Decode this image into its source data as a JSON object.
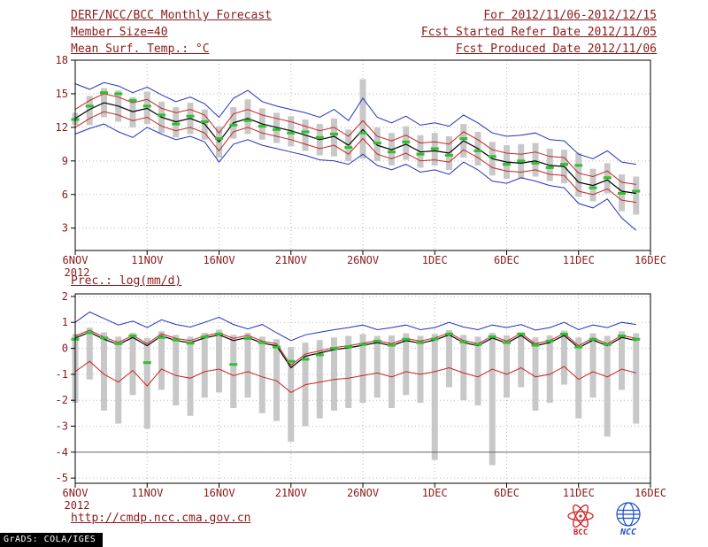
{
  "header": {
    "title": "DERF/NCC/BCC Monthly Forecast",
    "member_size": "Member Size=40",
    "panel1_label": "Mean Surf. Temp.: °C",
    "for_range": "For 2012/11/06-2012/12/15",
    "refer_date": "Fcst Started Refer Date 2012/11/05",
    "produced_date": "Fcst Produced Date 2012/11/06"
  },
  "panel2_label": "Prec.: log(mm/d)",
  "footer": {
    "url": "http://cmdp.ncc.cma.gov.cn",
    "grads_credit": "GrADS: COLA/IGES",
    "logo_bcc": "BCC",
    "logo_ncc": "NCC"
  },
  "colors": {
    "text": "#8b1a1a",
    "axis": "#000000",
    "grid": "#b8b8b8",
    "envelope": "#2233bb",
    "spread": "#cc2222",
    "mean": "#000000",
    "median_marker": "#2fbf2f",
    "bar": "#c8c8c8",
    "bcc_red": "#cc2222",
    "ncc_blue": "#1a4fd0"
  },
  "chart_data": [
    {
      "type": "line",
      "title": "Mean Surf. Temp.: °C",
      "ylim": [
        1,
        18
      ],
      "yticks": [
        3,
        6,
        9,
        12,
        15,
        18
      ],
      "x_range": [
        0,
        40
      ],
      "x_tick_positions": [
        0,
        5,
        10,
        15,
        20,
        25,
        30,
        35,
        40
      ],
      "x_tick_labels": [
        "6NOV",
        "11NOV",
        "16NOV",
        "21NOV",
        "26NOV",
        "1DEC",
        "6DEC",
        "11DEC",
        "16DEC"
      ],
      "x_year_label": "2012",
      "series": [
        {
          "name": "ensemble-max",
          "color": "#2233bb",
          "width": 1,
          "values": [
            15.9,
            15.4,
            16.0,
            15.7,
            15.1,
            15.6,
            14.9,
            14.3,
            14.7,
            14.1,
            12.9,
            14.6,
            15.3,
            14.3,
            13.9,
            13.6,
            13.3,
            12.9,
            13.6,
            12.6,
            14.6,
            12.9,
            12.4,
            13.0,
            12.2,
            12.4,
            12.1,
            13.1,
            12.4,
            11.5,
            11.2,
            11.3,
            11.5,
            10.9,
            10.8,
            9.6,
            9.2,
            9.9,
            8.9,
            8.7
          ]
        },
        {
          "name": "mean-plus-spread",
          "color": "#cc2222",
          "width": 1,
          "values": [
            13.6,
            14.4,
            15.0,
            14.7,
            14.2,
            14.5,
            13.7,
            13.3,
            13.6,
            13.1,
            11.5,
            13.2,
            13.6,
            13.1,
            12.8,
            12.5,
            12.1,
            11.7,
            12.0,
            11.2,
            12.6,
            11.2,
            10.8,
            11.3,
            10.6,
            10.7,
            10.5,
            11.6,
            10.9,
            10.0,
            9.7,
            9.6,
            9.8,
            9.4,
            9.3,
            7.9,
            7.6,
            8.1,
            7.1,
            6.9
          ]
        },
        {
          "name": "ensemble-mean",
          "color": "#000000",
          "width": 1.2,
          "values": [
            12.8,
            13.6,
            14.2,
            13.9,
            13.4,
            13.7,
            12.9,
            12.5,
            12.8,
            12.3,
            10.7,
            12.4,
            12.8,
            12.3,
            12.0,
            11.7,
            11.3,
            10.9,
            11.2,
            10.4,
            11.8,
            10.4,
            10.0,
            10.5,
            9.8,
            9.9,
            9.7,
            10.8,
            10.1,
            9.2,
            8.9,
            8.8,
            9.0,
            8.6,
            8.5,
            7.1,
            6.8,
            7.3,
            6.3,
            6.1
          ]
        },
        {
          "name": "mean-minus-spread",
          "color": "#cc2222",
          "width": 1,
          "values": [
            12.0,
            12.8,
            13.4,
            13.1,
            12.6,
            12.9,
            12.1,
            11.7,
            12.0,
            11.5,
            9.9,
            11.6,
            12.0,
            11.5,
            11.2,
            10.9,
            10.5,
            10.1,
            10.4,
            9.6,
            11.0,
            9.6,
            9.2,
            9.7,
            9.0,
            9.1,
            8.9,
            10.0,
            9.3,
            8.4,
            8.1,
            8.0,
            8.2,
            7.8,
            7.7,
            6.3,
            6.0,
            6.5,
            5.5,
            5.3
          ]
        },
        {
          "name": "ensemble-min",
          "color": "#2233bb",
          "width": 1,
          "values": [
            11.4,
            11.9,
            12.3,
            11.6,
            11.1,
            12.0,
            11.4,
            10.9,
            11.2,
            10.7,
            8.9,
            10.5,
            10.9,
            10.4,
            10.1,
            9.8,
            9.5,
            9.1,
            9.0,
            8.7,
            9.6,
            8.6,
            8.2,
            8.7,
            8.0,
            8.2,
            7.8,
            8.9,
            8.2,
            7.2,
            7.0,
            7.5,
            7.2,
            6.8,
            6.6,
            5.2,
            4.8,
            5.6,
            3.9,
            2.8
          ]
        }
      ],
      "range_bars": {
        "name": "member-range",
        "color": "#c8c8c8",
        "high": [
          13.3,
          14.8,
          15.5,
          15.3,
          14.7,
          15.2,
          14.3,
          13.8,
          14.2,
          13.6,
          12.1,
          13.8,
          14.5,
          13.7,
          13.3,
          13.0,
          12.7,
          12.3,
          12.8,
          11.8,
          16.3,
          12.0,
          11.5,
          12.1,
          11.3,
          11.5,
          11.2,
          12.3,
          11.6,
          10.7,
          10.4,
          10.5,
          10.6,
          10.1,
          10.0,
          9.7,
          8.3,
          8.8,
          7.8,
          7.6
        ],
        "low": [
          12.2,
          12.2,
          12.9,
          12.5,
          12.0,
          12.3,
          11.5,
          11.1,
          11.4,
          10.9,
          9.3,
          11.0,
          11.4,
          10.9,
          10.6,
          10.3,
          9.9,
          9.5,
          9.4,
          9.0,
          9.2,
          9.0,
          8.6,
          9.1,
          8.4,
          8.6,
          8.2,
          9.3,
          8.6,
          7.7,
          7.4,
          7.4,
          7.6,
          7.2,
          7.0,
          5.8,
          5.4,
          6.1,
          4.5,
          4.2
        ]
      },
      "markers": {
        "name": "ensemble-median",
        "color": "#2fbf2f",
        "values": [
          12.7,
          13.9,
          15.1,
          15.0,
          14.4,
          13.9,
          13.1,
          12.3,
          13.0,
          12.5,
          11.0,
          12.2,
          12.6,
          12.1,
          11.8,
          11.5,
          11.6,
          11.1,
          11.4,
          10.2,
          11.5,
          10.6,
          9.8,
          10.7,
          9.6,
          10.1,
          9.5,
          11.0,
          9.9,
          9.4,
          8.7,
          9.0,
          8.8,
          8.4,
          8.7,
          8.6,
          6.6,
          7.5,
          6.1,
          6.3
        ]
      }
    },
    {
      "type": "line",
      "title": "Prec.: log(mm/d)",
      "ylim": [
        -5.2,
        2.1
      ],
      "yticks": [
        -5,
        -4,
        -3,
        -2,
        -1,
        0,
        1,
        2
      ],
      "x_range": [
        0,
        40
      ],
      "x_tick_positions": [
        0,
        5,
        10,
        15,
        20,
        25,
        30,
        35,
        40
      ],
      "x_tick_labels": [
        "6NOV",
        "11NOV",
        "16NOV",
        "21NOV",
        "26NOV",
        "1DEC",
        "6DEC",
        "11DEC",
        "16DEC"
      ],
      "x_year_label": "2012",
      "floor_line": {
        "name": "min-precip-floor",
        "value": -4,
        "color": "#666666"
      },
      "series": [
        {
          "name": "ensemble-max",
          "color": "#2233bb",
          "width": 1,
          "values": [
            1.0,
            1.4,
            1.15,
            0.9,
            1.05,
            0.8,
            1.1,
            0.92,
            0.82,
            1.0,
            1.2,
            0.92,
            0.75,
            0.92,
            0.6,
            0.3,
            0.52,
            0.62,
            0.72,
            0.8,
            0.9,
            0.72,
            0.8,
            0.9,
            0.72,
            0.8,
            1.0,
            0.82,
            0.72,
            0.9,
            0.8,
            0.92,
            0.7,
            0.8,
            1.0,
            0.72,
            0.9,
            0.8,
            1.0,
            0.92
          ]
        },
        {
          "name": "mean-plus-spread",
          "color": "#cc2222",
          "width": 1,
          "values": [
            0.48,
            0.7,
            0.43,
            0.23,
            0.5,
            0.18,
            0.56,
            0.38,
            0.3,
            0.48,
            0.6,
            0.38,
            0.5,
            0.28,
            0.18,
            -0.65,
            -0.22,
            -0.1,
            0.03,
            0.1,
            0.2,
            0.3,
            0.18,
            0.38,
            0.28,
            0.4,
            0.6,
            0.3,
            0.18,
            0.48,
            0.28,
            0.58,
            0.18,
            0.3,
            0.58,
            0.1,
            0.4,
            0.18,
            0.5,
            0.38
          ]
        },
        {
          "name": "ensemble-mean",
          "color": "#000000",
          "width": 1.2,
          "values": [
            0.4,
            0.62,
            0.35,
            0.15,
            0.42,
            0.1,
            0.48,
            0.3,
            0.22,
            0.4,
            0.52,
            0.3,
            0.42,
            0.2,
            0.1,
            -0.75,
            -0.3,
            -0.18,
            -0.05,
            0.02,
            0.12,
            0.22,
            0.1,
            0.3,
            0.2,
            0.32,
            0.52,
            0.22,
            0.1,
            0.4,
            0.2,
            0.5,
            0.1,
            0.22,
            0.5,
            0.02,
            0.32,
            0.1,
            0.42,
            0.3
          ]
        },
        {
          "name": "mean-minus-spread",
          "color": "#cc2222",
          "width": 1,
          "values": [
            -0.9,
            -0.5,
            -1.0,
            -1.3,
            -0.85,
            -1.45,
            -0.8,
            -1.05,
            -1.15,
            -0.9,
            -0.8,
            -1.05,
            -0.9,
            -1.1,
            -1.25,
            -1.7,
            -1.4,
            -1.3,
            -1.2,
            -1.15,
            -1.05,
            -0.95,
            -1.1,
            -0.9,
            -1.0,
            -0.9,
            -0.75,
            -0.95,
            -1.1,
            -0.8,
            -1.0,
            -0.75,
            -1.1,
            -1.0,
            -0.7,
            -1.2,
            -0.9,
            -1.1,
            -0.8,
            -0.95
          ]
        }
      ],
      "range_bars": {
        "name": "member-range",
        "color": "#c8c8c8",
        "high": [
          0.55,
          0.8,
          0.62,
          0.45,
          0.6,
          0.4,
          0.66,
          0.52,
          0.45,
          0.6,
          0.72,
          0.52,
          0.6,
          0.45,
          0.35,
          0.05,
          0.22,
          0.32,
          0.42,
          0.48,
          0.55,
          0.48,
          0.5,
          0.58,
          0.48,
          0.55,
          0.7,
          0.52,
          0.45,
          0.6,
          0.5,
          0.62,
          0.42,
          0.5,
          0.68,
          0.42,
          0.58,
          0.48,
          0.66,
          0.58
        ],
        "low": [
          -2.1,
          -1.2,
          -2.4,
          -2.9,
          -1.8,
          -3.1,
          -1.6,
          -2.2,
          -2.6,
          -1.9,
          -1.7,
          -2.3,
          -1.9,
          -2.5,
          -2.8,
          -3.6,
          -3.0,
          -2.7,
          -2.4,
          -2.3,
          -2.1,
          -1.9,
          -2.3,
          -1.8,
          -2.1,
          -4.3,
          -1.5,
          -2.0,
          -2.2,
          -4.5,
          -1.9,
          -1.5,
          -2.4,
          -2.1,
          -1.4,
          -2.7,
          -1.9,
          -3.4,
          -1.6,
          -2.9
        ]
      },
      "markers": {
        "name": "ensemble-median",
        "color": "#2fbf2f",
        "values": [
          0.35,
          0.6,
          0.4,
          0.18,
          0.48,
          -0.55,
          0.42,
          0.32,
          0.2,
          0.44,
          0.55,
          -0.62,
          0.38,
          0.22,
          0.05,
          -0.5,
          -0.42,
          -0.25,
          0.0,
          0.06,
          0.15,
          0.28,
          0.12,
          0.35,
          0.22,
          0.36,
          0.55,
          0.25,
          0.15,
          0.45,
          0.22,
          0.55,
          0.12,
          0.28,
          0.55,
          0.05,
          0.35,
          0.15,
          0.48,
          0.35
        ]
      }
    }
  ]
}
